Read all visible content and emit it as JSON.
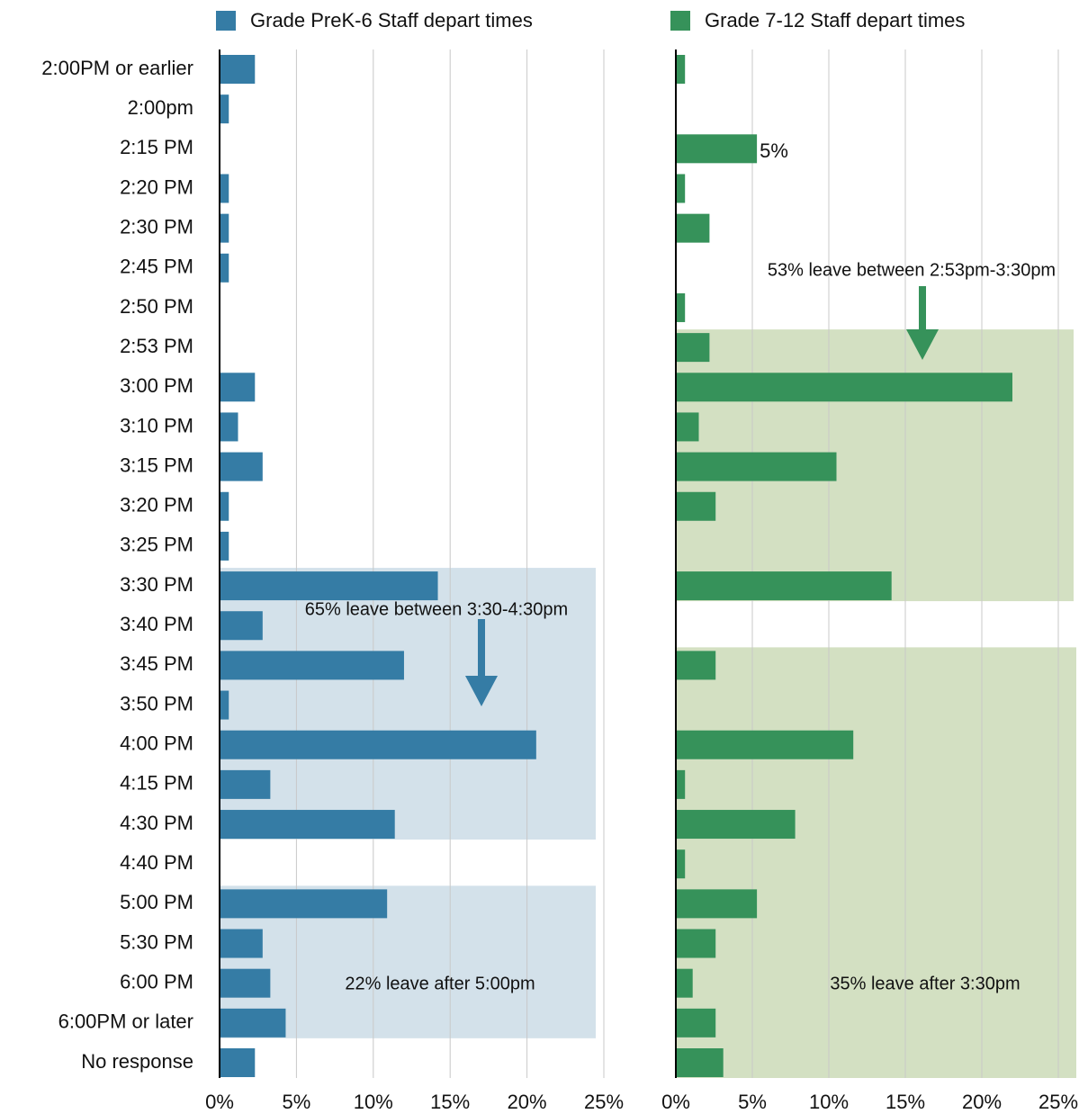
{
  "chart_data": [
    {
      "type": "barh",
      "categories": [
        "2:00PM or earlier",
        "2:00pm",
        "2:15 PM",
        "2:20 PM",
        "2:30 PM",
        "2:45 PM",
        "2:50 PM",
        "2:53 PM",
        "3:00 PM",
        "3:10 PM",
        "3:15 PM",
        "3:20 PM",
        "3:25 PM",
        "3:30 PM",
        "3:40 PM",
        "3:45 PM",
        "3:50 PM",
        "4:00 PM",
        "4:15 PM",
        "4:30 PM",
        "4:40 PM",
        "5:00 PM",
        "5:30 PM",
        "6:00 PM",
        "6:00PM or later",
        "No response"
      ],
      "series": [
        {
          "name": "Grade PreK-6 Staff depart times",
          "color": "#357ca5",
          "values": [
            2.3,
            0.6,
            0,
            0.6,
            0.6,
            0.6,
            0,
            0,
            2.3,
            1.2,
            2.8,
            0.6,
            0.6,
            14.2,
            2.8,
            12.0,
            0.6,
            20.6,
            3.3,
            11.4,
            0,
            10.9,
            2.8,
            3.3,
            4.3,
            2.3
          ]
        }
      ],
      "xlim": [
        0,
        25
      ],
      "xticks": [
        {
          "value": 0,
          "label": "0%"
        },
        {
          "value": 5,
          "label": "5%"
        },
        {
          "value": 10,
          "label": "10%"
        },
        {
          "value": 15,
          "label": "15%"
        },
        {
          "value": 20,
          "label": "20%"
        },
        {
          "value": 25,
          "label": "25%"
        }
      ],
      "grid": true,
      "annotations": [
        "65% leave between 3:30-4:30pm",
        "22% leave after 5:00pm"
      ]
    },
    {
      "type": "barh",
      "series": [
        {
          "name": "Grade 7-12 Staff depart times",
          "color": "#36925a",
          "values": [
            0.6,
            0,
            5.3,
            0.6,
            2.2,
            0,
            0.6,
            2.2,
            22.0,
            1.5,
            10.5,
            2.6,
            0,
            14.1,
            0,
            2.6,
            0,
            11.6,
            0.6,
            7.8,
            0.6,
            5.3,
            2.6,
            1.1,
            2.6,
            3.1
          ],
          "value_labels": [
            null,
            null,
            "5%",
            null,
            null,
            null,
            null,
            null,
            null,
            null,
            null,
            null,
            null,
            null,
            null,
            null,
            null,
            null,
            null,
            null,
            null,
            null,
            null,
            null,
            null,
            null
          ]
        }
      ],
      "xlim": [
        0,
        25
      ],
      "xticks": [
        {
          "value": 0,
          "label": "0%"
        },
        {
          "value": 5,
          "label": "5%"
        },
        {
          "value": 10,
          "label": "10%"
        },
        {
          "value": 15,
          "label": "15%"
        },
        {
          "value": 20,
          "label": "20%"
        },
        {
          "value": 25,
          "label": "25%"
        }
      ],
      "grid": true,
      "annotations": [
        "53% leave between 2:53pm-3:30pm",
        "35% leave after 3:30pm"
      ]
    }
  ]
}
